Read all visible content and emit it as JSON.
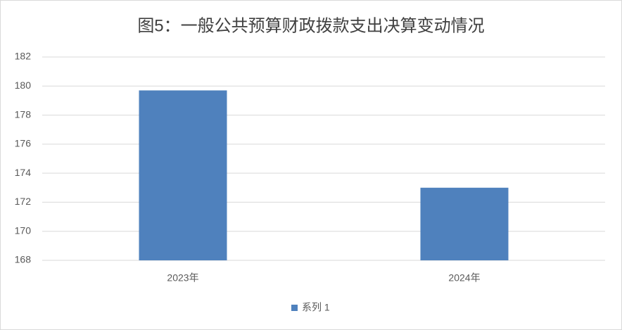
{
  "chart_data": {
    "type": "bar",
    "title": "图5：一般公共预算财政拨款支出决算变动情况",
    "categories": [
      "2023年",
      "2024年"
    ],
    "series": [
      {
        "name": "系列 1",
        "color": "#4f81bd",
        "values": [
          179.7,
          173.0
        ]
      }
    ],
    "ylim": [
      168,
      182
    ],
    "yticks": [
      168,
      170,
      172,
      174,
      176,
      178,
      180,
      182
    ],
    "grid": true,
    "legend": "bottom"
  }
}
